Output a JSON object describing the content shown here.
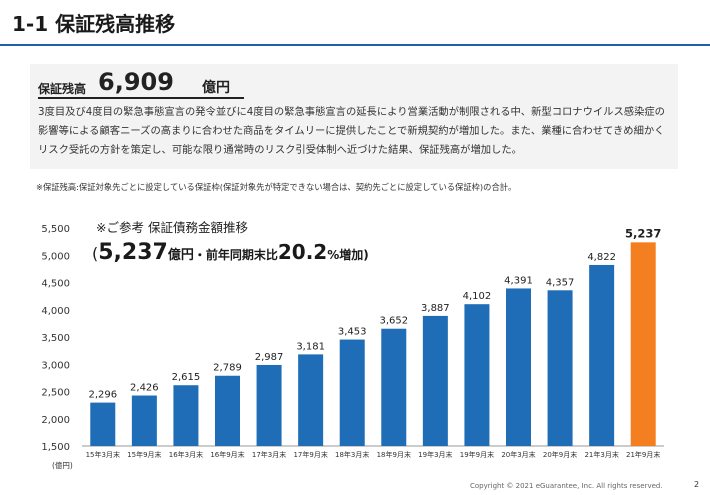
{
  "title": "1-1 保証残高推移",
  "summary": {
    "label": "保証残高",
    "value": "6,909",
    "unit": "億円",
    "description": "3度目及び4度目の緊急事態宣言の発令並びに4度目の緊急事態宣言の延長により営業活動が制限される中、新型コロナウイルス感染症の影響等による顧客ニーズの高まりに合わせた商品をタイムリーに提供したことで新規契約が増加した。また、業種に合わせてきめ細かくリスク受託の方針を策定し、可能な限り通常時のリスク引受体制へ近づけた結果、保証残高が増加した。"
  },
  "footnote": "※保証残高:保証対象先ごとに設定している保証枠(保証対象先が特定できない場合は、契約先ごとに設定している保証枠)の合計。",
  "chart_subtitle": "※ご参考 保証債務金額推移",
  "callout": {
    "open": "(",
    "value": "5,237",
    "unit": "億円",
    "mid": "・前年同期末比",
    "rate": "20.2",
    "end": "%増加)"
  },
  "y_unit": "(億円)",
  "page_number": "2",
  "copyright": "Copyright © 2021 eGuarantee, Inc. All rights reserved.",
  "colors": {
    "bar": "#1f6db7",
    "highlight": "#f47f20",
    "rule": "#1f5fa8"
  },
  "chart_data": {
    "type": "bar",
    "categories": [
      "15年3月末",
      "15年9月末",
      "16年3月末",
      "16年9月末",
      "17年3月末",
      "17年9月末",
      "18年3月末",
      "18年9月末",
      "19年3月末",
      "19年9月末",
      "20年3月末",
      "20年9月末",
      "21年3月末",
      "21年9月末"
    ],
    "values": [
      2296,
      2426,
      2615,
      2789,
      2987,
      3181,
      3453,
      3652,
      3887,
      4102,
      4391,
      4357,
      4822,
      5237
    ],
    "labels": [
      "2,296",
      "2,426",
      "2,615",
      "2,789",
      "2,987",
      "3,181",
      "3,453",
      "3,652",
      "3,887",
      "4,102",
      "4,391",
      "4,357",
      "4,822",
      "5,237"
    ],
    "highlight_index": 13,
    "ylim": [
      1500,
      5500
    ],
    "yticks": [
      1500,
      2000,
      2500,
      3000,
      3500,
      4000,
      4500,
      5000,
      5500
    ],
    "ytick_labels": [
      "1,500",
      "2,000",
      "2,500",
      "3,000",
      "3,500",
      "4,000",
      "4,500",
      "5,000",
      "5,500"
    ],
    "grid": false
  }
}
